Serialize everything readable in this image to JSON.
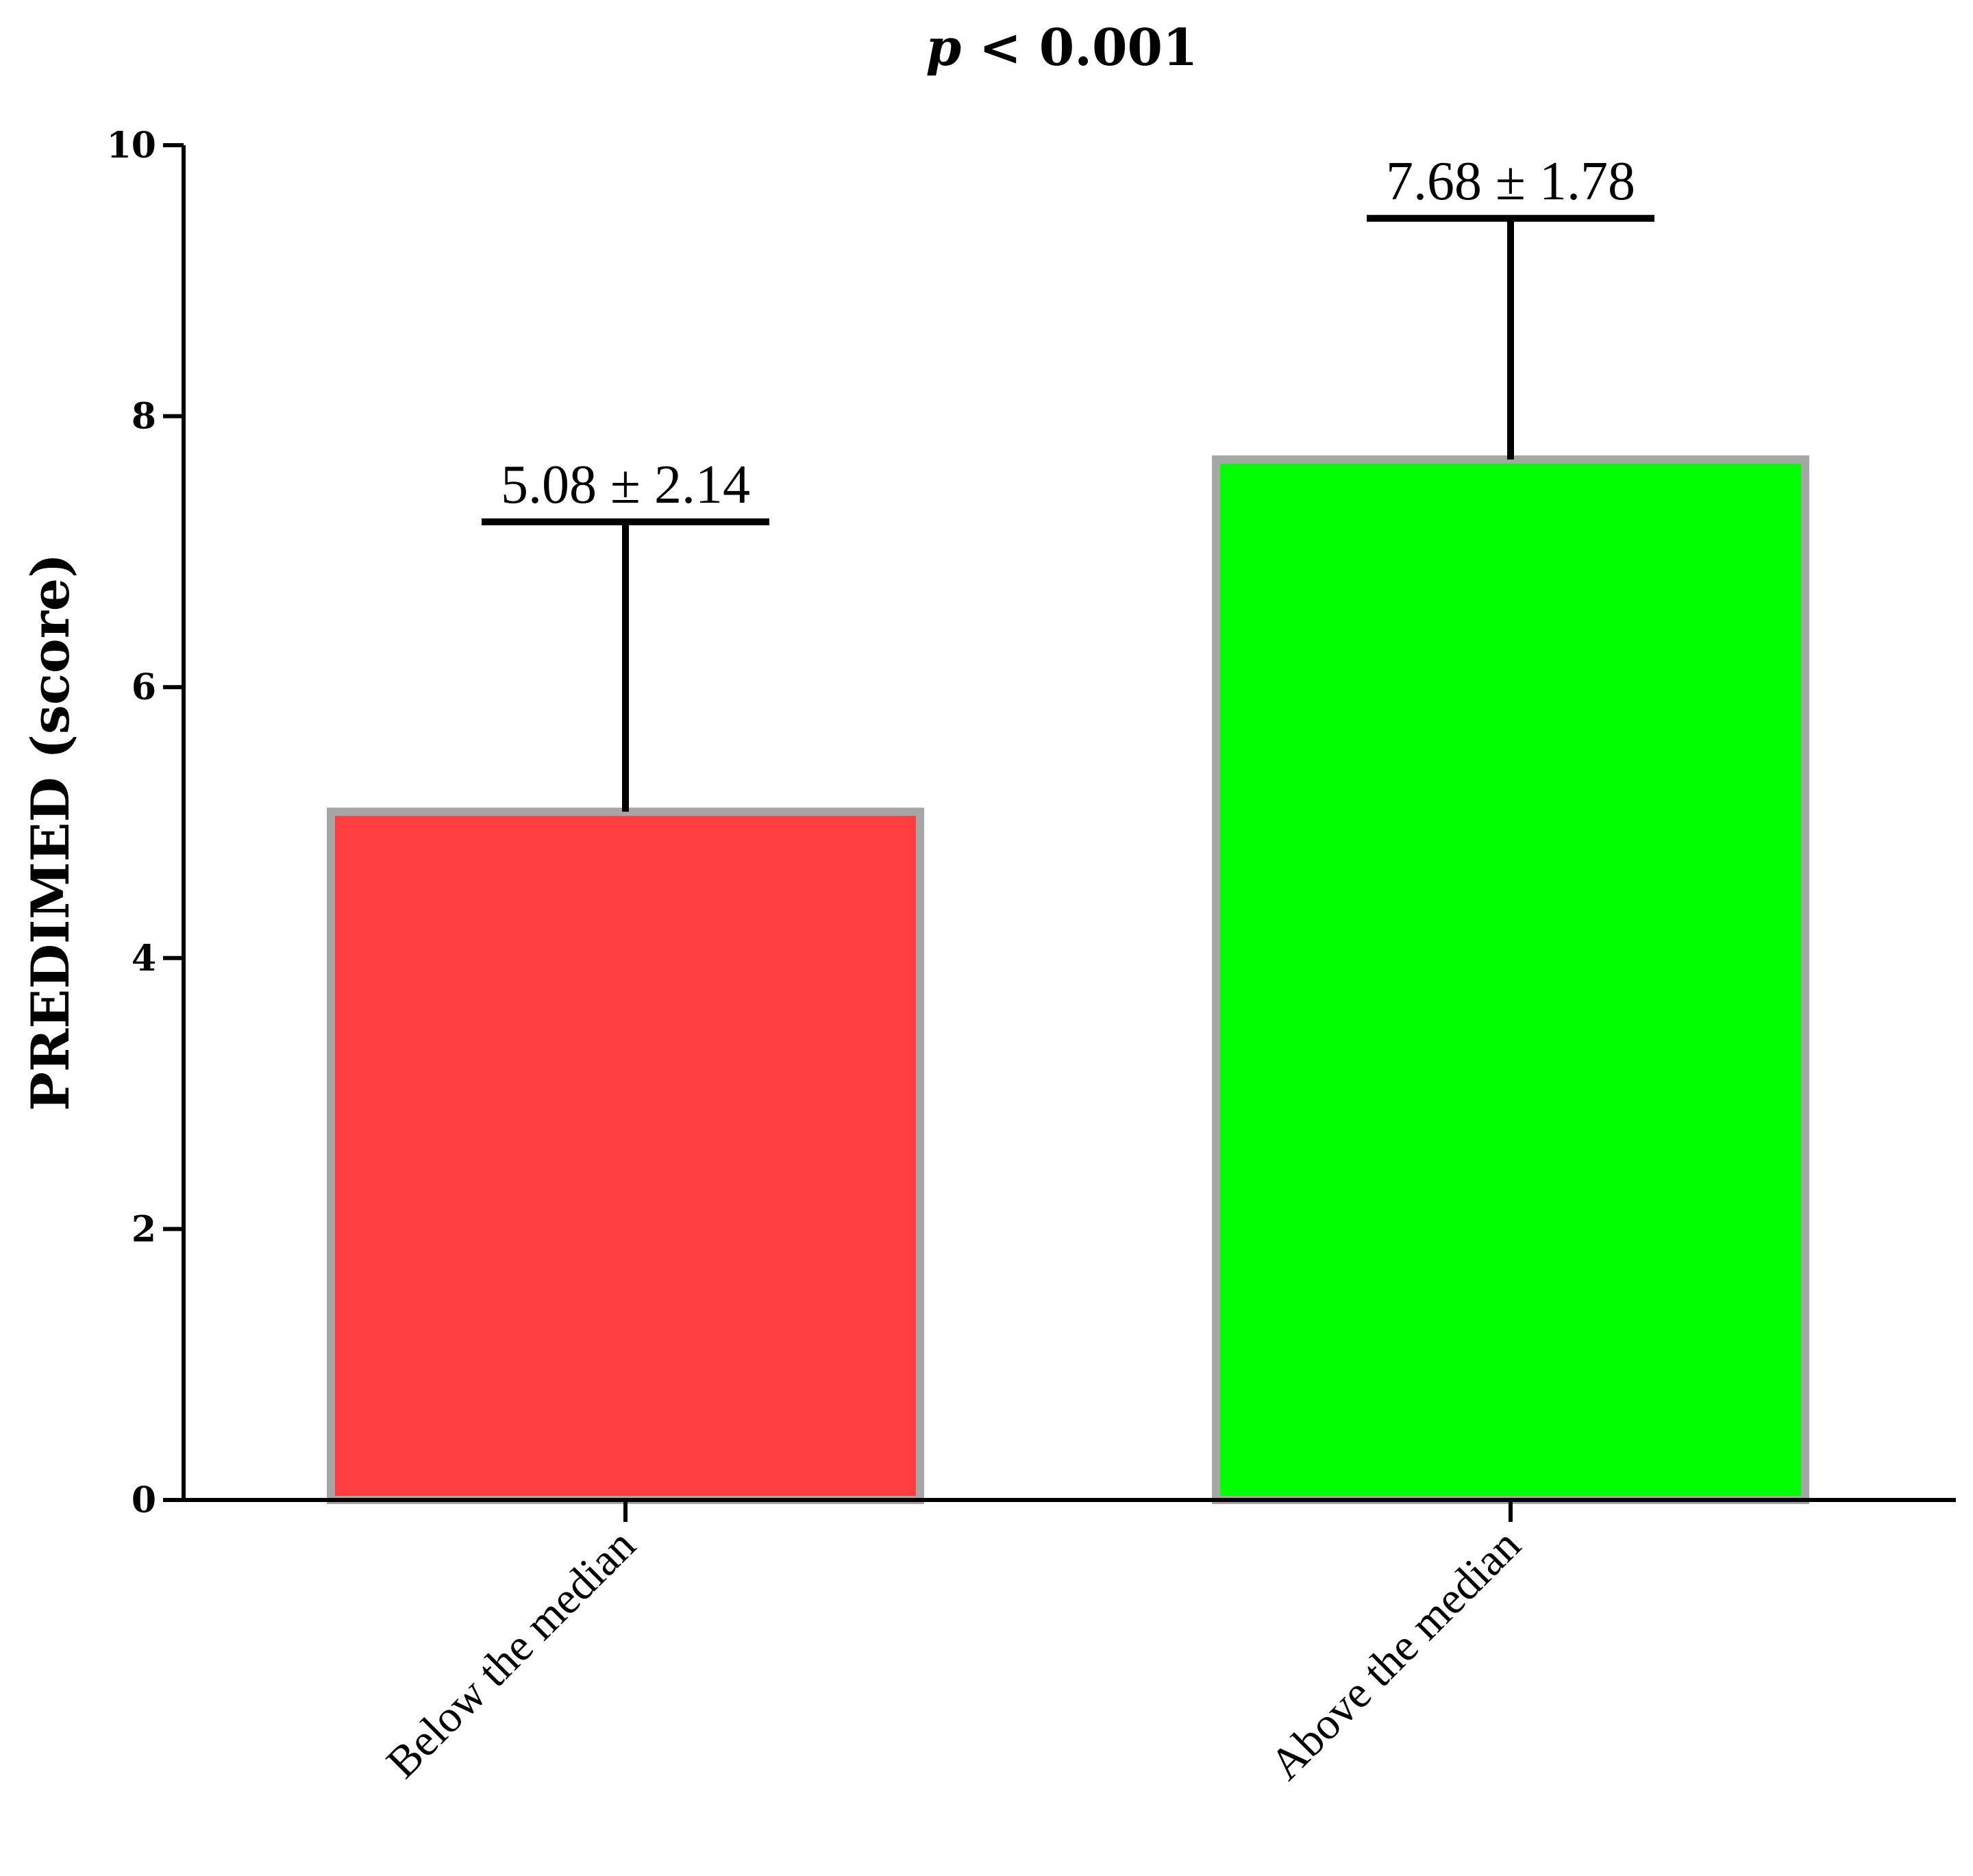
{
  "chart_data": {
    "type": "bar",
    "title_italic": "p",
    "title_rest": " < 0.001",
    "ylabel": "PREDIMED (score)",
    "xlabel": "",
    "ylim": [
      0,
      10
    ],
    "yticks": [
      0,
      2,
      4,
      6,
      8,
      10
    ],
    "categories": [
      "Below the median",
      "Above the median"
    ],
    "values": [
      5.08,
      7.68
    ],
    "errors": [
      2.14,
      1.78
    ],
    "data_labels": [
      "5.08 ± 2.14",
      "7.68 ± 1.78"
    ],
    "colors": [
      "#ff3f3f",
      "#00ff00"
    ],
    "bar_edge_color": "#a6a6a6",
    "grid": false,
    "legend": "none"
  }
}
